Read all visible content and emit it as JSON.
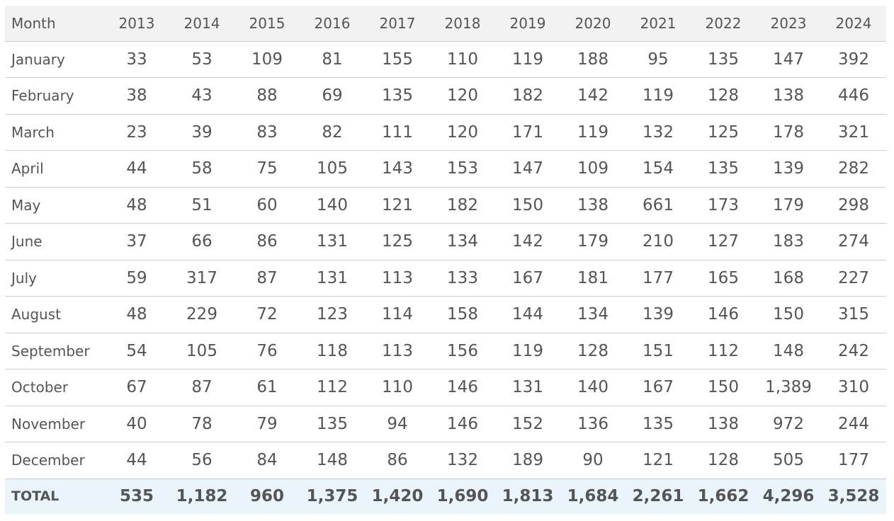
{
  "table": {
    "header": [
      "Month",
      "2013",
      "2014",
      "2015",
      "2016",
      "2017",
      "2018",
      "2019",
      "2020",
      "2021",
      "2022",
      "2023",
      "2024"
    ],
    "rows": [
      [
        "January",
        "33",
        "53",
        "109",
        "81",
        "155",
        "110",
        "119",
        "188",
        "95",
        "135",
        "147",
        "392"
      ],
      [
        "February",
        "38",
        "43",
        "88",
        "69",
        "135",
        "120",
        "182",
        "142",
        "119",
        "128",
        "138",
        "446"
      ],
      [
        "March",
        "23",
        "39",
        "83",
        "82",
        "111",
        "120",
        "171",
        "119",
        "132",
        "125",
        "178",
        "321"
      ],
      [
        "April",
        "44",
        "58",
        "75",
        "105",
        "143",
        "153",
        "147",
        "109",
        "154",
        "135",
        "139",
        "282"
      ],
      [
        "May",
        "48",
        "51",
        "60",
        "140",
        "121",
        "182",
        "150",
        "138",
        "661",
        "173",
        "179",
        "298"
      ],
      [
        "June",
        "37",
        "66",
        "86",
        "131",
        "125",
        "134",
        "142",
        "179",
        "210",
        "127",
        "183",
        "274"
      ],
      [
        "July",
        "59",
        "317",
        "87",
        "131",
        "113",
        "133",
        "167",
        "181",
        "177",
        "165",
        "168",
        "227"
      ],
      [
        "August",
        "48",
        "229",
        "72",
        "123",
        "114",
        "158",
        "144",
        "134",
        "139",
        "146",
        "150",
        "315"
      ],
      [
        "September",
        "54",
        "105",
        "76",
        "118",
        "113",
        "156",
        "119",
        "128",
        "151",
        "112",
        "148",
        "242"
      ],
      [
        "October",
        "67",
        "87",
        "61",
        "112",
        "110",
        "146",
        "131",
        "140",
        "167",
        "150",
        "1,389",
        "310"
      ],
      [
        "November",
        "40",
        "78",
        "79",
        "135",
        "94",
        "146",
        "152",
        "136",
        "135",
        "138",
        "972",
        "244"
      ],
      [
        "December",
        "44",
        "56",
        "84",
        "148",
        "86",
        "132",
        "189",
        "90",
        "121",
        "128",
        "505",
        "177"
      ]
    ],
    "total": [
      "TOTAL",
      "535",
      "1,182",
      "960",
      "1,375",
      "1,420",
      "1,690",
      "1,813",
      "1,684",
      "2,261",
      "1,662",
      "4,296",
      "3,528"
    ]
  }
}
